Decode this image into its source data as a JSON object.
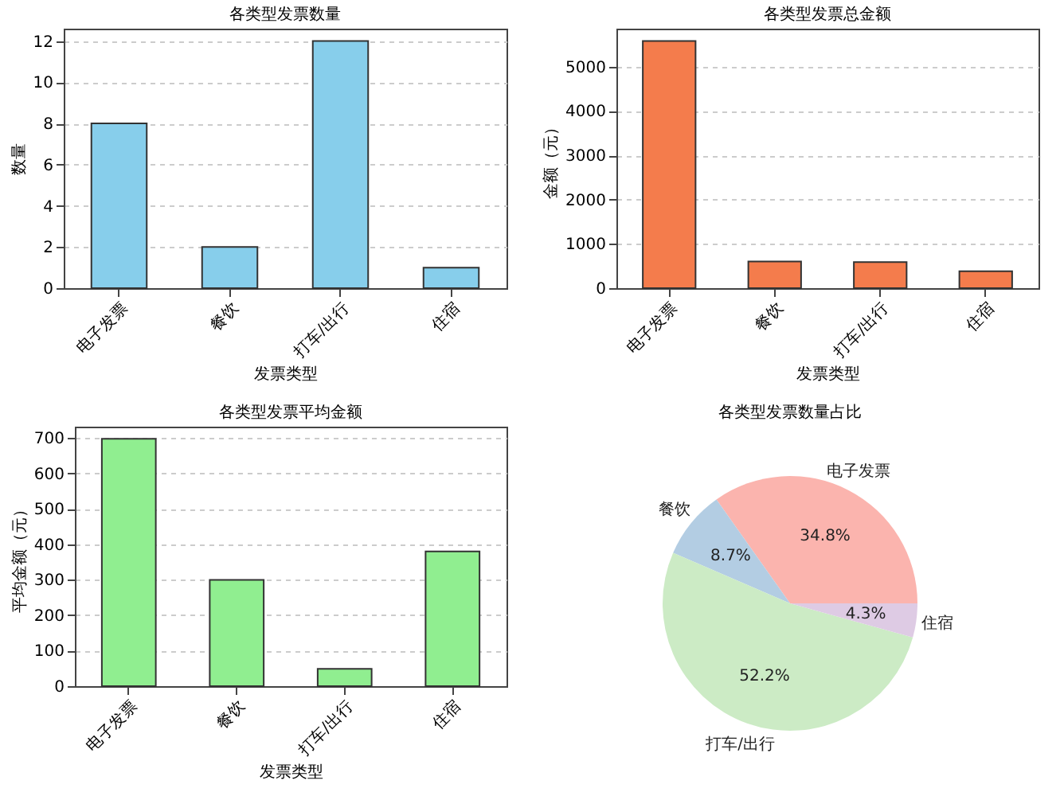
{
  "chart_data": [
    {
      "type": "bar",
      "title": "各类型发票数量",
      "xlabel": "发票类型",
      "ylabel": "数量",
      "categories": [
        "电子发票",
        "餐饮",
        "打车/出行",
        "住宿"
      ],
      "values": [
        8,
        2,
        12,
        1
      ],
      "color": "#87ceeb",
      "ylim": [
        0,
        12.6
      ],
      "yticks": [
        0,
        2,
        4,
        6,
        8,
        10,
        12
      ],
      "grid": "y"
    },
    {
      "type": "bar",
      "title": "各类型发票总金额",
      "xlabel": "发票类型",
      "ylabel": "金额（元）",
      "categories": [
        "电子发票",
        "餐饮",
        "打车/出行",
        "住宿"
      ],
      "values": [
        5580,
        600,
        590,
        380
      ],
      "color": "#f47c4c",
      "ylim": [
        0,
        5860
      ],
      "yticks": [
        0,
        1000,
        2000,
        3000,
        4000,
        5000
      ],
      "grid": "y"
    },
    {
      "type": "bar",
      "title": "各类型发票平均金额",
      "xlabel": "发票类型",
      "ylabel": "平均金额（元）",
      "categories": [
        "电子发票",
        "餐饮",
        "打车/出行",
        "住宿"
      ],
      "values": [
        698,
        300,
        49,
        380
      ],
      "color": "#90ee90",
      "ylim": [
        0,
        732
      ],
      "yticks": [
        0,
        100,
        200,
        300,
        400,
        500,
        600,
        700
      ],
      "grid": "y"
    },
    {
      "type": "pie",
      "title": "各类型发票数量占比",
      "categories": [
        "电子发票",
        "餐饮",
        "打车/出行",
        "住宿"
      ],
      "values": [
        34.8,
        8.7,
        52.2,
        4.3
      ],
      "colors": [
        "#fbb4ae",
        "#b3cde3",
        "#ccebc5",
        "#decbe4"
      ],
      "value_labels": [
        "34.8%",
        "8.7%",
        "52.2%",
        "4.3%"
      ]
    }
  ]
}
